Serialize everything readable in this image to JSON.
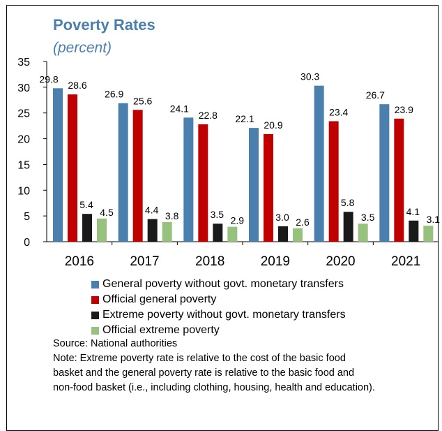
{
  "chart_data": {
    "type": "bar",
    "title": "Poverty Rates",
    "subtitle": "(percent)",
    "categories": [
      "2016",
      "2017",
      "2018",
      "2019",
      "2020",
      "2021"
    ],
    "ylim": [
      0,
      35
    ],
    "yticks": [
      0,
      5,
      10,
      15,
      20,
      25,
      30,
      35
    ],
    "grid": false,
    "legend_position": "bottom",
    "series": [
      {
        "name": "General poverty without govt. monetary transfers",
        "color": "#4a7fae",
        "values": [
          29.8,
          26.9,
          24.1,
          22.1,
          30.3,
          26.7
        ]
      },
      {
        "name": "Official general poverty",
        "color": "#c00000",
        "values": [
          28.6,
          25.6,
          22.8,
          20.9,
          23.4,
          23.9
        ]
      },
      {
        "name": "Extreme poverty without govt. monetary transfers",
        "color": "#1a1a1a",
        "values": [
          5.4,
          4.4,
          3.5,
          3.0,
          5.8,
          4.1
        ]
      },
      {
        "name": "Official extreme poverty",
        "color": "#97c27e",
        "values": [
          4.5,
          3.8,
          2.9,
          2.6,
          3.5,
          3.1
        ]
      }
    ]
  },
  "notes": {
    "source": "Source: National authorities",
    "note_lines": [
      "Note: Extreme poverty rate is relative to the cost of the basic food",
      "basket and the general poverty rate is relative to the basic food and",
      "non-food basket (i.e., including clothing, housing, health and education)."
    ]
  }
}
